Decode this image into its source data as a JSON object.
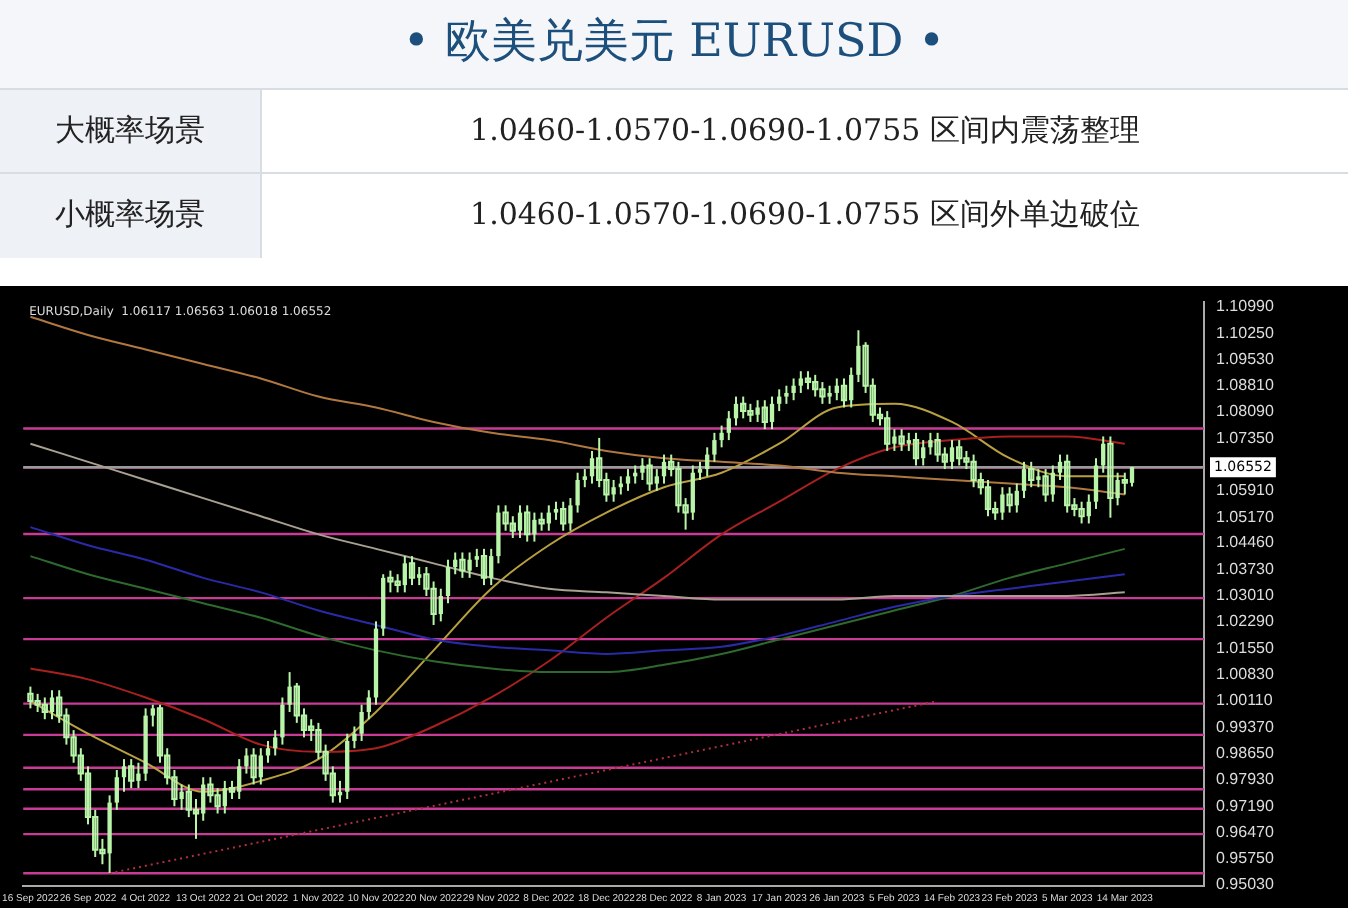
{
  "chart_data": {
    "type": "candlestick",
    "title": "• 欧美兑美元 EURUSD •",
    "annotations": [
      "大概率场景",
      "1.0460-1.0570-1.0690-1.0755 区间内震荡整理",
      "小概率场景",
      "1.0460-1.0570-1.0690-1.0755 区间外单边破位",
      "EURUSD,Daily  1.06117 1.06563 1.06018 1.06552"
    ],
    "categories": [
      "16 Sep 2022",
      null,
      null,
      null,
      null,
      null,
      null,
      null,
      "26 Sep 2022",
      null,
      null,
      null,
      null,
      null,
      null,
      null,
      "4 Oct 2022",
      null,
      null,
      null,
      null,
      null,
      null,
      null,
      "13 Oct 2022",
      null,
      null,
      null,
      null,
      null,
      null,
      null,
      "21 Oct 2022",
      null,
      null,
      null,
      null,
      null,
      null,
      null,
      "1 Nov 2022",
      null,
      null,
      null,
      null,
      null,
      null,
      null,
      "10 Nov 2022",
      null,
      null,
      null,
      null,
      null,
      null,
      null,
      "20 Nov 2022",
      null,
      null,
      null,
      null,
      null,
      null,
      null,
      "29 Nov 2022",
      null,
      null,
      null,
      null,
      null,
      null,
      null,
      "8 Dec 2022",
      null,
      null,
      null,
      null,
      null,
      null,
      null,
      "18 Dec 2022",
      null,
      null,
      null,
      null,
      null,
      null,
      null,
      "28 Dec 2022",
      null,
      null,
      null,
      null,
      null,
      null,
      null,
      "8 Jan 2023",
      null,
      null,
      null,
      null,
      null,
      null,
      null,
      "17 Jan 2023",
      null,
      null,
      null,
      null,
      null,
      null,
      null,
      "26 Jan 2023",
      null,
      null,
      null,
      null,
      null,
      null,
      null,
      "5 Feb 2023",
      null,
      null,
      null,
      null,
      null,
      null,
      null,
      "14 Feb 2023",
      null,
      null,
      null,
      null,
      null,
      null,
      null,
      "23 Feb 2023",
      null,
      null,
      null,
      null,
      null,
      null,
      null,
      "5 Mar 2023",
      null,
      null,
      null,
      null,
      null,
      null,
      null,
      "14 Mar 2023",
      null
    ],
    "color": "#b8f5a8",
    "ohlc": [
      [
        1.003,
        1.005,
        0.999,
        1.001
      ],
      [
        1.001,
        1.003,
        0.998,
        1.0
      ],
      [
        1.0,
        1.002,
        0.996,
        0.998
      ],
      [
        0.998,
        1.004,
        0.996,
        1.002
      ],
      [
        1.002,
        1.004,
        0.995,
        0.997
      ],
      [
        0.997,
        0.999,
        0.989,
        0.991
      ],
      [
        0.991,
        0.993,
        0.984,
        0.986
      ],
      [
        0.986,
        0.988,
        0.979,
        0.981
      ],
      [
        0.981,
        0.983,
        0.967,
        0.969
      ],
      [
        0.969,
        0.971,
        0.958,
        0.96
      ],
      [
        0.96,
        0.963,
        0.956,
        0.959
      ],
      [
        0.959,
        0.975,
        0.9536,
        0.973
      ],
      [
        0.973,
        0.982,
        0.971,
        0.98
      ],
      [
        0.98,
        0.985,
        0.976,
        0.983
      ],
      [
        0.983,
        0.985,
        0.977,
        0.979
      ],
      [
        0.979,
        0.984,
        0.977,
        0.981
      ],
      [
        0.981,
        0.999,
        0.979,
        0.997
      ],
      [
        0.997,
        1.0,
        0.994,
        0.999
      ],
      [
        0.999,
        1.0,
        0.984,
        0.986
      ],
      [
        0.986,
        0.988,
        0.978,
        0.98
      ],
      [
        0.98,
        0.982,
        0.972,
        0.974
      ],
      [
        0.974,
        0.978,
        0.971,
        0.976
      ],
      [
        0.976,
        0.978,
        0.969,
        0.971
      ],
      [
        0.971,
        0.974,
        0.963,
        0.97
      ],
      [
        0.97,
        0.98,
        0.968,
        0.978
      ],
      [
        0.978,
        0.98,
        0.973,
        0.975
      ],
      [
        0.975,
        0.977,
        0.97,
        0.972
      ],
      [
        0.972,
        0.979,
        0.97,
        0.977
      ],
      [
        0.977,
        0.979,
        0.974,
        0.976
      ],
      [
        0.976,
        0.985,
        0.974,
        0.983
      ],
      [
        0.983,
        0.988,
        0.981,
        0.986
      ],
      [
        0.986,
        0.988,
        0.978,
        0.98
      ],
      [
        0.98,
        0.988,
        0.978,
        0.986
      ],
      [
        0.986,
        0.99,
        0.984,
        0.988
      ],
      [
        0.988,
        0.993,
        0.986,
        0.991
      ],
      [
        0.991,
        1.002,
        0.989,
        1.0
      ],
      [
        1.0,
        1.009,
        0.998,
        1.005
      ],
      [
        1.005,
        1.006,
        0.995,
        0.997
      ],
      [
        0.997,
        0.999,
        0.991,
        0.993
      ],
      [
        0.994,
        0.996,
        0.99,
        0.993
      ],
      [
        0.993,
        0.995,
        0.985,
        0.987
      ],
      [
        0.987,
        0.989,
        0.979,
        0.981
      ],
      [
        0.981,
        0.983,
        0.973,
        0.975
      ],
      [
        0.975,
        0.979,
        0.973,
        0.976
      ],
      [
        0.976,
        0.992,
        0.974,
        0.99
      ],
      [
        0.99,
        0.994,
        0.988,
        0.992
      ],
      [
        0.992,
        1.0,
        0.99,
        0.998
      ],
      [
        0.998,
        1.004,
        0.996,
        1.002
      ],
      [
        1.002,
        1.023,
        1.0,
        1.021
      ],
      [
        1.021,
        1.036,
        1.019,
        1.035
      ],
      [
        1.035,
        1.037,
        1.031,
        1.034
      ],
      [
        1.034,
        1.036,
        1.031,
        1.033
      ],
      [
        1.033,
        1.041,
        1.031,
        1.039
      ],
      [
        1.039,
        1.041,
        1.033,
        1.035
      ],
      [
        1.035,
        1.038,
        1.033,
        1.036
      ],
      [
        1.036,
        1.038,
        1.03,
        1.032
      ],
      [
        1.032,
        1.034,
        1.022,
        1.025
      ],
      [
        1.025,
        1.032,
        1.023,
        1.03
      ],
      [
        1.03,
        1.04,
        1.028,
        1.038
      ],
      [
        1.038,
        1.042,
        1.036,
        1.04
      ],
      [
        1.04,
        1.042,
        1.035,
        1.037
      ],
      [
        1.037,
        1.042,
        1.035,
        1.04
      ],
      [
        1.04,
        1.043,
        1.038,
        1.041
      ],
      [
        1.041,
        1.043,
        1.033,
        1.035
      ],
      [
        1.035,
        1.043,
        1.033,
        1.041
      ],
      [
        1.041,
        1.055,
        1.039,
        1.053
      ],
      [
        1.053,
        1.055,
        1.048,
        1.05
      ],
      [
        1.05,
        1.052,
        1.046,
        1.048
      ],
      [
        1.048,
        1.055,
        1.046,
        1.053
      ],
      [
        1.053,
        1.055,
        1.045,
        1.047
      ],
      [
        1.047,
        1.053,
        1.045,
        1.051
      ],
      [
        1.051,
        1.053,
        1.048,
        1.05
      ],
      [
        1.05,
        1.055,
        1.048,
        1.053
      ],
      [
        1.053,
        1.056,
        1.051,
        1.054
      ],
      [
        1.054,
        1.056,
        1.048,
        1.05
      ],
      [
        1.05,
        1.057,
        1.048,
        1.055
      ],
      [
        1.055,
        1.064,
        1.053,
        1.062
      ],
      [
        1.062,
        1.065,
        1.06,
        1.063
      ],
      [
        1.063,
        1.07,
        1.061,
        1.068
      ],
      [
        1.068,
        1.0736,
        1.06,
        1.062
      ],
      [
        1.062,
        1.064,
        1.056,
        1.058
      ],
      [
        1.058,
        1.062,
        1.056,
        1.06
      ],
      [
        1.06,
        1.063,
        1.058,
        1.061
      ],
      [
        1.061,
        1.065,
        1.059,
        1.063
      ],
      [
        1.063,
        1.066,
        1.061,
        1.064
      ],
      [
        1.064,
        1.068,
        1.062,
        1.066
      ],
      [
        1.066,
        1.068,
        1.059,
        1.061
      ],
      [
        1.061,
        1.065,
        1.059,
        1.063
      ],
      [
        1.063,
        1.069,
        1.061,
        1.067
      ],
      [
        1.067,
        1.069,
        1.063,
        1.065
      ],
      [
        1.065,
        1.067,
        1.053,
        1.055
      ],
      [
        1.055,
        1.057,
        1.0483,
        1.053
      ],
      [
        1.053,
        1.066,
        1.051,
        1.064
      ],
      [
        1.064,
        1.067,
        1.062,
        1.065
      ],
      [
        1.065,
        1.071,
        1.063,
        1.069
      ],
      [
        1.069,
        1.075,
        1.067,
        1.073
      ],
      [
        1.073,
        1.077,
        1.071,
        1.075
      ],
      [
        1.075,
        1.081,
        1.073,
        1.079
      ],
      [
        1.079,
        1.085,
        1.077,
        1.083
      ],
      [
        1.083,
        1.085,
        1.079,
        1.081
      ],
      [
        1.081,
        1.083,
        1.078,
        1.08
      ],
      [
        1.08,
        1.084,
        1.078,
        1.082
      ],
      [
        1.082,
        1.084,
        1.076,
        1.078
      ],
      [
        1.078,
        1.085,
        1.076,
        1.083
      ],
      [
        1.083,
        1.087,
        1.081,
        1.085
      ],
      [
        1.085,
        1.088,
        1.083,
        1.086
      ],
      [
        1.086,
        1.09,
        1.084,
        1.088
      ],
      [
        1.088,
        1.092,
        1.086,
        1.09
      ],
      [
        1.09,
        1.092,
        1.087,
        1.089
      ],
      [
        1.089,
        1.091,
        1.085,
        1.087
      ],
      [
        1.087,
        1.089,
        1.083,
        1.085
      ],
      [
        1.085,
        1.088,
        1.083,
        1.086
      ],
      [
        1.086,
        1.09,
        1.084,
        1.088
      ],
      [
        1.088,
        1.09,
        1.082,
        1.084
      ],
      [
        1.084,
        1.093,
        1.082,
        1.091
      ],
      [
        1.091,
        1.1033,
        1.089,
        1.099
      ],
      [
        1.099,
        1.1,
        1.086,
        1.088
      ],
      [
        1.088,
        1.09,
        1.078,
        1.08
      ],
      [
        1.08,
        1.082,
        1.077,
        1.079
      ],
      [
        1.079,
        1.081,
        1.07,
        1.072
      ],
      [
        1.072,
        1.076,
        1.07,
        1.074
      ],
      [
        1.074,
        1.076,
        1.07,
        1.072
      ],
      [
        1.072,
        1.075,
        1.07,
        1.073
      ],
      [
        1.073,
        1.075,
        1.066,
        1.068
      ],
      [
        1.068,
        1.073,
        1.066,
        1.071
      ],
      [
        1.071,
        1.075,
        1.069,
        1.073
      ],
      [
        1.073,
        1.075,
        1.067,
        1.069
      ],
      [
        1.069,
        1.071,
        1.065,
        1.067
      ],
      [
        1.067,
        1.073,
        1.065,
        1.071
      ],
      [
        1.071,
        1.073,
        1.066,
        1.068
      ],
      [
        1.068,
        1.07,
        1.065,
        1.067
      ],
      [
        1.067,
        1.069,
        1.06,
        1.062
      ],
      [
        1.062,
        1.064,
        1.058,
        1.06
      ],
      [
        1.06,
        1.062,
        1.052,
        1.054
      ],
      [
        1.054,
        1.056,
        1.051,
        1.053
      ],
      [
        1.053,
        1.06,
        1.051,
        1.058
      ],
      [
        1.058,
        1.06,
        1.053,
        1.055
      ],
      [
        1.055,
        1.061,
        1.053,
        1.059
      ],
      [
        1.059,
        1.067,
        1.057,
        1.065
      ],
      [
        1.065,
        1.067,
        1.06,
        1.062
      ],
      [
        1.062,
        1.065,
        1.06,
        1.063
      ],
      [
        1.063,
        1.065,
        1.056,
        1.058
      ],
      [
        1.058,
        1.066,
        1.056,
        1.064
      ],
      [
        1.064,
        1.069,
        1.062,
        1.067
      ],
      [
        1.067,
        1.069,
        1.053,
        1.055
      ],
      [
        1.055,
        1.057,
        1.052,
        1.054
      ],
      [
        1.054,
        1.056,
        1.05,
        1.052
      ],
      [
        1.052,
        1.058,
        1.05,
        1.056
      ],
      [
        1.056,
        1.068,
        1.054,
        1.066
      ],
      [
        1.066,
        1.074,
        1.064,
        1.072
      ],
      [
        1.072,
        1.074,
        1.0516,
        1.057
      ],
      [
        1.057,
        1.064,
        1.055,
        1.062
      ],
      [
        1.062,
        1.064,
        1.058,
        1.0612
      ],
      [
        1.0612,
        1.0656,
        1.0602,
        1.0655
      ]
    ],
    "series": [
      {
        "type": "line",
        "color": "#b07840",
        "values": [
          1.107,
          null,
          null,
          null,
          null,
          null,
          null,
          null,
          1.102,
          null,
          null,
          null,
          null,
          null,
          null,
          null,
          1.098,
          null,
          null,
          null,
          null,
          null,
          null,
          null,
          1.094,
          null,
          null,
          null,
          null,
          null,
          null,
          null,
          1.09,
          null,
          null,
          null,
          null,
          null,
          null,
          null,
          1.085,
          null,
          null,
          null,
          null,
          null,
          null,
          null,
          1.082,
          null,
          null,
          null,
          null,
          null,
          null,
          null,
          1.078,
          null,
          null,
          null,
          null,
          null,
          null,
          null,
          1.075,
          null,
          null,
          null,
          null,
          null,
          null,
          null,
          1.073,
          null,
          null,
          null,
          null,
          null,
          null,
          null,
          1.07,
          null,
          null,
          null,
          null,
          null,
          null,
          null,
          1.068,
          null,
          null,
          null,
          null,
          null,
          null,
          null,
          1.067,
          null,
          null,
          null,
          null,
          null,
          null,
          null,
          1.066,
          null,
          null,
          null,
          null,
          null,
          null,
          null,
          1.064,
          null,
          null,
          null,
          null,
          null,
          null,
          null,
          1.063,
          null,
          null,
          null,
          null,
          null,
          null,
          null,
          1.062,
          null,
          null,
          null,
          null,
          null,
          null,
          null,
          1.061,
          null,
          null,
          null,
          null,
          null,
          null,
          null,
          1.06,
          null,
          null,
          null,
          null,
          null,
          null,
          null,
          1.058,
          null
        ]
      },
      {
        "type": "line",
        "color": "#a8a090",
        "values": [
          1.072,
          null,
          null,
          null,
          null,
          null,
          null,
          null,
          1.067,
          null,
          null,
          null,
          null,
          null,
          null,
          null,
          1.062,
          null,
          null,
          null,
          null,
          null,
          null,
          null,
          1.057,
          null,
          null,
          null,
          null,
          null,
          null,
          null,
          1.052,
          null,
          null,
          null,
          null,
          null,
          null,
          null,
          1.047,
          null,
          null,
          null,
          null,
          null,
          null,
          null,
          1.043,
          null,
          null,
          null,
          null,
          null,
          null,
          null,
          1.039,
          null,
          null,
          null,
          null,
          null,
          null,
          null,
          1.035,
          null,
          null,
          null,
          null,
          null,
          null,
          null,
          1.032,
          null,
          null,
          null,
          null,
          null,
          null,
          null,
          1.031,
          null,
          null,
          null,
          null,
          null,
          null,
          null,
          1.03,
          null,
          null,
          null,
          null,
          null,
          null,
          null,
          1.029,
          null,
          null,
          null,
          null,
          null,
          null,
          null,
          1.029,
          null,
          null,
          null,
          null,
          null,
          null,
          null,
          1.029,
          null,
          null,
          null,
          null,
          null,
          null,
          null,
          1.03,
          null,
          null,
          null,
          null,
          null,
          null,
          null,
          1.03,
          null,
          null,
          null,
          null,
          null,
          null,
          null,
          1.03,
          null,
          null,
          null,
          null,
          null,
          null,
          null,
          1.03,
          null,
          null,
          null,
          null,
          null,
          null,
          null,
          1.031,
          null
        ]
      },
      {
        "type": "line",
        "color": "#2a2aa8",
        "values": [
          1.049,
          null,
          null,
          null,
          null,
          null,
          null,
          null,
          1.044,
          null,
          null,
          null,
          null,
          null,
          null,
          null,
          1.04,
          null,
          null,
          null,
          null,
          null,
          null,
          null,
          1.035,
          null,
          null,
          null,
          null,
          null,
          null,
          null,
          1.031,
          null,
          null,
          null,
          null,
          null,
          null,
          null,
          1.026,
          null,
          null,
          null,
          null,
          null,
          null,
          null,
          1.022,
          null,
          null,
          null,
          null,
          null,
          null,
          null,
          1.018,
          null,
          null,
          null,
          null,
          null,
          null,
          null,
          1.016,
          null,
          null,
          null,
          null,
          null,
          null,
          null,
          1.015,
          null,
          null,
          null,
          null,
          null,
          null,
          null,
          1.014,
          null,
          null,
          null,
          null,
          null,
          null,
          null,
          1.015,
          null,
          null,
          null,
          null,
          null,
          null,
          null,
          1.016,
          null,
          null,
          null,
          null,
          null,
          null,
          null,
          1.019,
          null,
          null,
          null,
          null,
          null,
          null,
          null,
          1.023,
          null,
          null,
          null,
          null,
          null,
          null,
          null,
          1.027,
          null,
          null,
          null,
          null,
          null,
          null,
          null,
          1.03,
          null,
          null,
          null,
          null,
          null,
          null,
          null,
          1.032,
          null,
          null,
          null,
          null,
          null,
          null,
          null,
          1.034,
          null,
          null,
          null,
          null,
          null,
          null,
          null,
          1.036,
          null
        ]
      },
      {
        "type": "line",
        "color": "#2e6a2e",
        "values": [
          1.041,
          null,
          null,
          null,
          null,
          null,
          null,
          null,
          1.036,
          null,
          null,
          null,
          null,
          null,
          null,
          null,
          1.032,
          null,
          null,
          null,
          null,
          null,
          null,
          null,
          1.028,
          null,
          null,
          null,
          null,
          null,
          null,
          null,
          1.024,
          null,
          null,
          null,
          null,
          null,
          null,
          null,
          1.019,
          null,
          null,
          null,
          null,
          null,
          null,
          null,
          1.015,
          null,
          null,
          null,
          null,
          null,
          null,
          null,
          1.012,
          null,
          null,
          null,
          null,
          null,
          null,
          null,
          1.01,
          null,
          null,
          null,
          null,
          null,
          null,
          null,
          1.009,
          null,
          null,
          null,
          null,
          null,
          null,
          null,
          1.009,
          null,
          null,
          null,
          null,
          null,
          null,
          null,
          1.011,
          null,
          null,
          null,
          null,
          null,
          null,
          null,
          1.014,
          null,
          null,
          null,
          null,
          null,
          null,
          null,
          1.018,
          null,
          null,
          null,
          null,
          null,
          null,
          null,
          1.022,
          null,
          null,
          null,
          null,
          null,
          null,
          null,
          1.026,
          null,
          null,
          null,
          null,
          null,
          null,
          null,
          1.03,
          null,
          null,
          null,
          null,
          null,
          null,
          null,
          1.035,
          null,
          null,
          null,
          null,
          null,
          null,
          null,
          1.039,
          null,
          null,
          null,
          null,
          null,
          null,
          null,
          1.043,
          null
        ]
      },
      {
        "type": "line",
        "color": "#a82020",
        "values": [
          1.01,
          null,
          null,
          null,
          null,
          null,
          null,
          null,
          1.007,
          null,
          null,
          null,
          null,
          null,
          null,
          null,
          1.002,
          null,
          null,
          null,
          null,
          null,
          null,
          null,
          0.996,
          null,
          null,
          null,
          null,
          null,
          null,
          null,
          0.989,
          null,
          null,
          null,
          null,
          null,
          null,
          null,
          0.987,
          null,
          null,
          null,
          null,
          null,
          null,
          null,
          0.988,
          null,
          null,
          null,
          null,
          null,
          null,
          null,
          0.994,
          null,
          null,
          null,
          null,
          null,
          null,
          null,
          1.002,
          null,
          null,
          null,
          null,
          null,
          null,
          null,
          1.012,
          null,
          null,
          null,
          null,
          null,
          null,
          null,
          1.024,
          null,
          null,
          null,
          null,
          null,
          null,
          null,
          1.035,
          null,
          null,
          null,
          null,
          null,
          null,
          null,
          1.047,
          null,
          null,
          null,
          null,
          null,
          null,
          null,
          1.056,
          null,
          null,
          null,
          null,
          null,
          null,
          null,
          1.065,
          null,
          null,
          null,
          null,
          null,
          null,
          null,
          1.071,
          null,
          null,
          null,
          null,
          null,
          null,
          null,
          1.073,
          null,
          null,
          null,
          null,
          null,
          null,
          null,
          1.074,
          null,
          null,
          null,
          null,
          null,
          null,
          null,
          1.074,
          null,
          null,
          null,
          null,
          null,
          null,
          null,
          1.072,
          null
        ]
      },
      {
        "type": "line",
        "color": "#b8a040",
        "values": [
          1.001,
          null,
          null,
          null,
          null,
          null,
          null,
          null,
          0.992,
          null,
          null,
          null,
          null,
          null,
          null,
          null,
          0.984,
          null,
          null,
          null,
          null,
          null,
          null,
          null,
          0.976,
          null,
          null,
          null,
          null,
          null,
          null,
          null,
          0.979,
          null,
          null,
          null,
          null,
          null,
          null,
          null,
          0.985,
          null,
          null,
          null,
          null,
          null,
          null,
          null,
          0.998,
          null,
          null,
          null,
          null,
          null,
          null,
          null,
          1.015,
          null,
          null,
          null,
          null,
          null,
          null,
          null,
          1.032,
          null,
          null,
          null,
          null,
          null,
          null,
          null,
          1.044,
          null,
          null,
          null,
          null,
          null,
          null,
          null,
          1.053,
          null,
          null,
          null,
          null,
          null,
          null,
          null,
          1.06,
          null,
          null,
          null,
          null,
          null,
          null,
          null,
          1.064,
          null,
          null,
          null,
          null,
          null,
          null,
          null,
          1.072,
          null,
          null,
          null,
          null,
          null,
          null,
          null,
          1.082,
          null,
          null,
          null,
          null,
          null,
          null,
          null,
          1.083,
          null,
          null,
          null,
          null,
          null,
          null,
          null,
          1.078,
          null,
          null,
          null,
          null,
          null,
          null,
          null,
          1.068,
          null,
          null,
          null,
          null,
          null,
          null,
          null,
          1.063,
          null,
          null,
          null,
          null,
          null,
          null,
          null,
          1.063,
          null
        ]
      },
      {
        "type": "line",
        "color": "#b03040",
        "line_style": "dotted",
        "values": [
          null,
          null,
          null,
          null,
          null,
          null,
          null,
          null,
          null,
          null,
          null,
          0.9535,
          null,
          null,
          null,
          null,
          null,
          null,
          null,
          null,
          null,
          null,
          null,
          null,
          null,
          null,
          null,
          null,
          null,
          null,
          null,
          null,
          null,
          null,
          null,
          null,
          null,
          null,
          null,
          null,
          null,
          null,
          null,
          null,
          null,
          null,
          null,
          null,
          null,
          null,
          null,
          null,
          null,
          null,
          null,
          null,
          null,
          null,
          null,
          null,
          null,
          null,
          null,
          null,
          null,
          null,
          null,
          null,
          null,
          null,
          null,
          null,
          null,
          null,
          null,
          null,
          null,
          null,
          null,
          null,
          null,
          null,
          null,
          null,
          null,
          null,
          null,
          null,
          null,
          null,
          null,
          null,
          null,
          null,
          null,
          null,
          null,
          null,
          null,
          null,
          null,
          null,
          null,
          null,
          null,
          null,
          null,
          null,
          null,
          null,
          null,
          null,
          null,
          null,
          null,
          null,
          null,
          null,
          null,
          null,
          null,
          null,
          null,
          null,
          null,
          null,
          1.001,
          null,
          null,
          null,
          null,
          null,
          null,
          null,
          null,
          null,
          null,
          null,
          null,
          null,
          null,
          null,
          null,
          null,
          null,
          null,
          null,
          null,
          null,
          null,
          null,
          null,
          null,
          null
        ]
      }
    ],
    "ylim": [
      0.95,
      1.1112
    ],
    "yticks": [
      {
        "value": 1.1099,
        "label": "1.10990"
      },
      {
        "value": 1.1025,
        "label": "1.10250"
      },
      {
        "value": 1.0953,
        "label": "1.09530"
      },
      {
        "value": 1.0881,
        "label": "1.08810"
      },
      {
        "value": 1.0809,
        "label": "1.08090"
      },
      {
        "value": 1.0735,
        "label": "1.07350"
      },
      {
        "value": 1.0591,
        "label": "1.05910"
      },
      {
        "value": 1.0517,
        "label": "1.05170"
      },
      {
        "value": 1.0446,
        "label": "1.04460"
      },
      {
        "value": 1.0373,
        "label": "1.03730"
      },
      {
        "value": 1.0301,
        "label": "1.03010"
      },
      {
        "value": 1.0229,
        "label": "1.02290"
      },
      {
        "value": 1.0155,
        "label": "1.01550"
      },
      {
        "value": 1.0083,
        "label": "1.00830"
      },
      {
        "value": 1.0011,
        "label": "1.00110"
      },
      {
        "value": 0.9937,
        "label": "0.99370"
      },
      {
        "value": 0.9865,
        "label": "0.98650"
      },
      {
        "value": 0.9793,
        "label": "0.97930"
      },
      {
        "value": 0.9719,
        "label": "0.97190"
      },
      {
        "value": 0.9647,
        "label": "0.96470"
      },
      {
        "value": 0.9575,
        "label": "0.95750"
      },
      {
        "value": 0.9503,
        "label": "0.95030"
      }
    ],
    "ref_lines": [
      {
        "axis": "y",
        "value": 1.0762,
        "color": "#c83c96"
      },
      {
        "axis": "y",
        "value": 1.0654,
        "color": "#c83c96"
      },
      {
        "axis": "y",
        "value": 1.0471,
        "color": "#c83c96"
      },
      {
        "axis": "y",
        "value": 1.0294,
        "color": "#c83c96"
      },
      {
        "axis": "y",
        "value": 1.0181,
        "color": "#c83c96"
      },
      {
        "axis": "y",
        "value": 1.0003,
        "color": "#c83c96"
      },
      {
        "axis": "y",
        "value": 0.9917,
        "color": "#c83c96"
      },
      {
        "axis": "y",
        "value": 0.9826,
        "color": "#c83c96"
      },
      {
        "axis": "y",
        "value": 0.9767,
        "color": "#c83c96"
      },
      {
        "axis": "y",
        "value": 0.9713,
        "color": "#c83c96"
      },
      {
        "axis": "y",
        "value": 0.9643,
        "color": "#c83c96"
      },
      {
        "axis": "y",
        "value": 0.9535,
        "color": "#c83c96"
      },
      {
        "axis": "y",
        "value": 1.06552,
        "label": "1.06552",
        "color": "#9a9a9a"
      }
    ]
  }
}
